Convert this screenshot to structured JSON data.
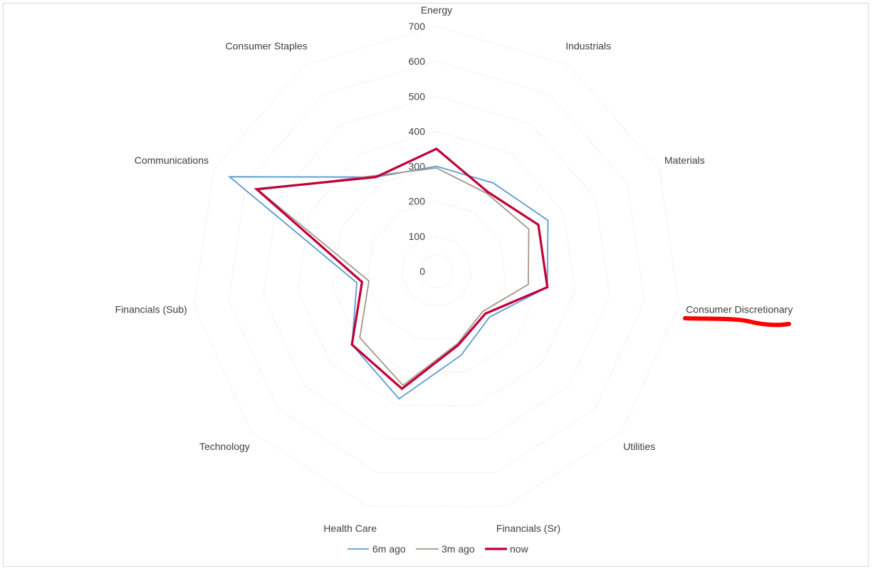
{
  "chart_data": {
    "type": "radar",
    "title": "",
    "categories": [
      "Energy",
      "Industrials",
      "Materials",
      "Consumer Discretionary",
      "Utilities",
      "Financials (Sr)",
      "Health Care",
      "Technology",
      "Financials (Sub)",
      "Communications",
      "Consumer Staples"
    ],
    "rlim": [
      0,
      700
    ],
    "ticks": [
      0,
      100,
      200,
      300,
      400,
      500,
      600,
      700
    ],
    "grid": true,
    "legend_position": "bottom",
    "series": [
      {
        "name": "6m ago",
        "color": "#5b9bd5",
        "values": [
          300,
          300,
          350,
          320,
          200,
          250,
          380,
          320,
          230,
          650,
          320
        ]
      },
      {
        "name": "3m ago",
        "color": "#a5968a",
        "values": [
          295,
          265,
          290,
          265,
          175,
          215,
          340,
          290,
          195,
          560,
          325
        ]
      },
      {
        "name": "now",
        "color": "#c00039",
        "values": [
          350,
          270,
          320,
          320,
          185,
          220,
          350,
          320,
          215,
          565,
          320
        ]
      }
    ]
  },
  "annotation": {
    "type": "red-underline",
    "target": "Consumer Discretionary",
    "color": "#ff0000"
  }
}
